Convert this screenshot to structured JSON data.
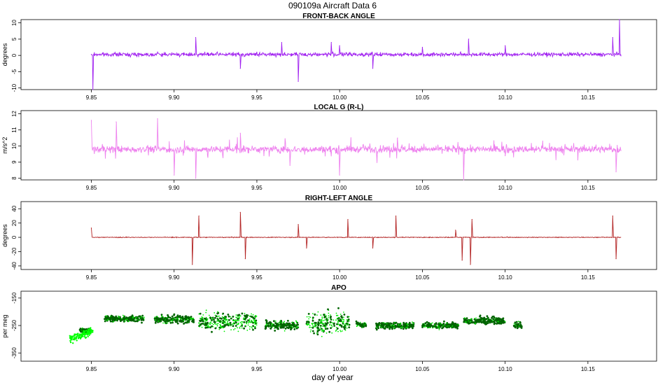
{
  "suptitle": "090109a   Aircraft Data 6",
  "xlabel": "day of year",
  "x_ticks": [
    9.85,
    9.9,
    9.95,
    10.0,
    10.05,
    10.1,
    10.15
  ],
  "x_tick_labels": [
    "9.85",
    "9.90",
    "9.95",
    "10.00",
    "10.05",
    "10.10",
    "10.15"
  ],
  "xlim": [
    9.8075,
    10.1915
  ],
  "chart_data": [
    {
      "type": "line",
      "title": "FRONT-BACK ANGLE",
      "ylabel": "degrees",
      "color": "#a020f0",
      "ylim": [
        -10.5,
        11
      ],
      "y_ticks": [
        -10,
        -5,
        0,
        5,
        10
      ],
      "y_tick_labels": [
        "-10",
        "-5",
        "0",
        "5",
        "10"
      ],
      "x_range": [
        9.85,
        10.17
      ],
      "baseline": 0.3,
      "series": [
        {
          "name": "front-back angle",
          "x": [
            9.85,
            9.851,
            9.87,
            9.89,
            9.905,
            9.913,
            9.94,
            9.95,
            9.965,
            9.975,
            9.995,
            10.0,
            10.02,
            10.05,
            10.078,
            10.1,
            10.12,
            10.15,
            10.165,
            10.169
          ],
          "y": [
            0.3,
            -10.5,
            0.5,
            1.0,
            0.5,
            5.5,
            -4.0,
            1.0,
            4.0,
            -8.0,
            4.0,
            3.0,
            -4.0,
            2.5,
            5.0,
            3.0,
            0.5,
            0.5,
            5.5,
            11.0
          ]
        }
      ]
    },
    {
      "type": "line",
      "title": "LOCAL G (R-L)",
      "ylabel": "m/s^2",
      "color": "#ee82ee",
      "ylim": [
        7.9,
        12.2
      ],
      "y_ticks": [
        8,
        9,
        10,
        11,
        12
      ],
      "y_tick_labels": [
        "8",
        "9",
        "10",
        "11",
        "12"
      ],
      "x_range": [
        9.85,
        10.17
      ],
      "baseline": 9.8,
      "series": [
        {
          "name": "local g (r-l)",
          "x": [
            9.85,
            9.865,
            9.89,
            9.9,
            9.913,
            9.94,
            9.97,
            10.0,
            10.035,
            10.075,
            10.1,
            10.167
          ],
          "y": [
            11.6,
            11.5,
            11.7,
            8.2,
            8.0,
            10.8,
            8.8,
            8.2,
            10.5,
            7.9,
            9.4,
            8.4
          ]
        }
      ]
    },
    {
      "type": "line",
      "title": "RIGHT-LEFT ANGLE",
      "ylabel": "degrees",
      "color": "#b22222",
      "ylim": [
        -45,
        50
      ],
      "y_ticks": [
        -40,
        -20,
        0,
        20,
        40
      ],
      "y_tick_labels": [
        "-40",
        "-20",
        "0",
        "20",
        "40"
      ],
      "x_range": [
        9.85,
        10.17
      ],
      "baseline": 0,
      "series": [
        {
          "name": "right-left angle",
          "x": [
            9.85,
            9.911,
            9.915,
            9.94,
            9.943,
            9.975,
            9.98,
            10.005,
            10.02,
            10.034,
            10.07,
            10.074,
            10.079,
            10.08,
            10.165,
            10.167
          ],
          "y": [
            13,
            -38,
            30,
            35,
            -30,
            18,
            -15,
            25,
            -15,
            30,
            10,
            -32,
            -38,
            25,
            30,
            -30
          ]
        }
      ]
    },
    {
      "type": "scatter",
      "title": "APO",
      "ylabel": "per meg",
      "ylim": [
        -380,
        -125
      ],
      "y_ticks": [
        -150,
        -250,
        -350
      ],
      "y_tick_labels": [
        "-150",
        "-250",
        "-350"
      ],
      "colors": {
        "early": "#00ff00",
        "points": "#00ee00",
        "dense": "#006400"
      },
      "segments": [
        {
          "x": [
            9.843,
            9.85
          ],
          "y_mean": -268,
          "spread": 6,
          "style": "dense"
        },
        {
          "x": [
            9.858,
            9.882
          ],
          "y_mean": -225,
          "spread": 7,
          "style": "dense"
        },
        {
          "x": [
            9.888,
            9.912
          ],
          "y_mean": -228,
          "spread": 10,
          "style": "dense"
        },
        {
          "x": [
            9.915,
            9.95
          ],
          "y_mean": -235,
          "spread": 22,
          "style": "mixed"
        },
        {
          "x": [
            9.955,
            9.975
          ],
          "y_mean": -248,
          "spread": 12,
          "style": "dense"
        },
        {
          "x": [
            9.98,
            10.006
          ],
          "y_mean": -240,
          "spread": 25,
          "style": "mixed"
        },
        {
          "x": [
            10.01,
            10.016
          ],
          "y_mean": -248,
          "spread": 8,
          "style": "dense"
        },
        {
          "x": [
            10.022,
            10.045
          ],
          "y_mean": -250,
          "spread": 8,
          "style": "dense"
        },
        {
          "x": [
            10.05,
            10.072
          ],
          "y_mean": -250,
          "spread": 8,
          "style": "dense"
        },
        {
          "x": [
            10.075,
            10.1
          ],
          "y_mean": -232,
          "spread": 10,
          "style": "dense"
        },
        {
          "x": [
            10.105,
            10.11
          ],
          "y_mean": -248,
          "spread": 8,
          "style": "dense"
        }
      ],
      "early_segment": {
        "x": [
          9.837,
          9.851
        ],
        "y_start": -300,
        "y_end": -270,
        "spread": 10,
        "style": "early"
      }
    }
  ]
}
